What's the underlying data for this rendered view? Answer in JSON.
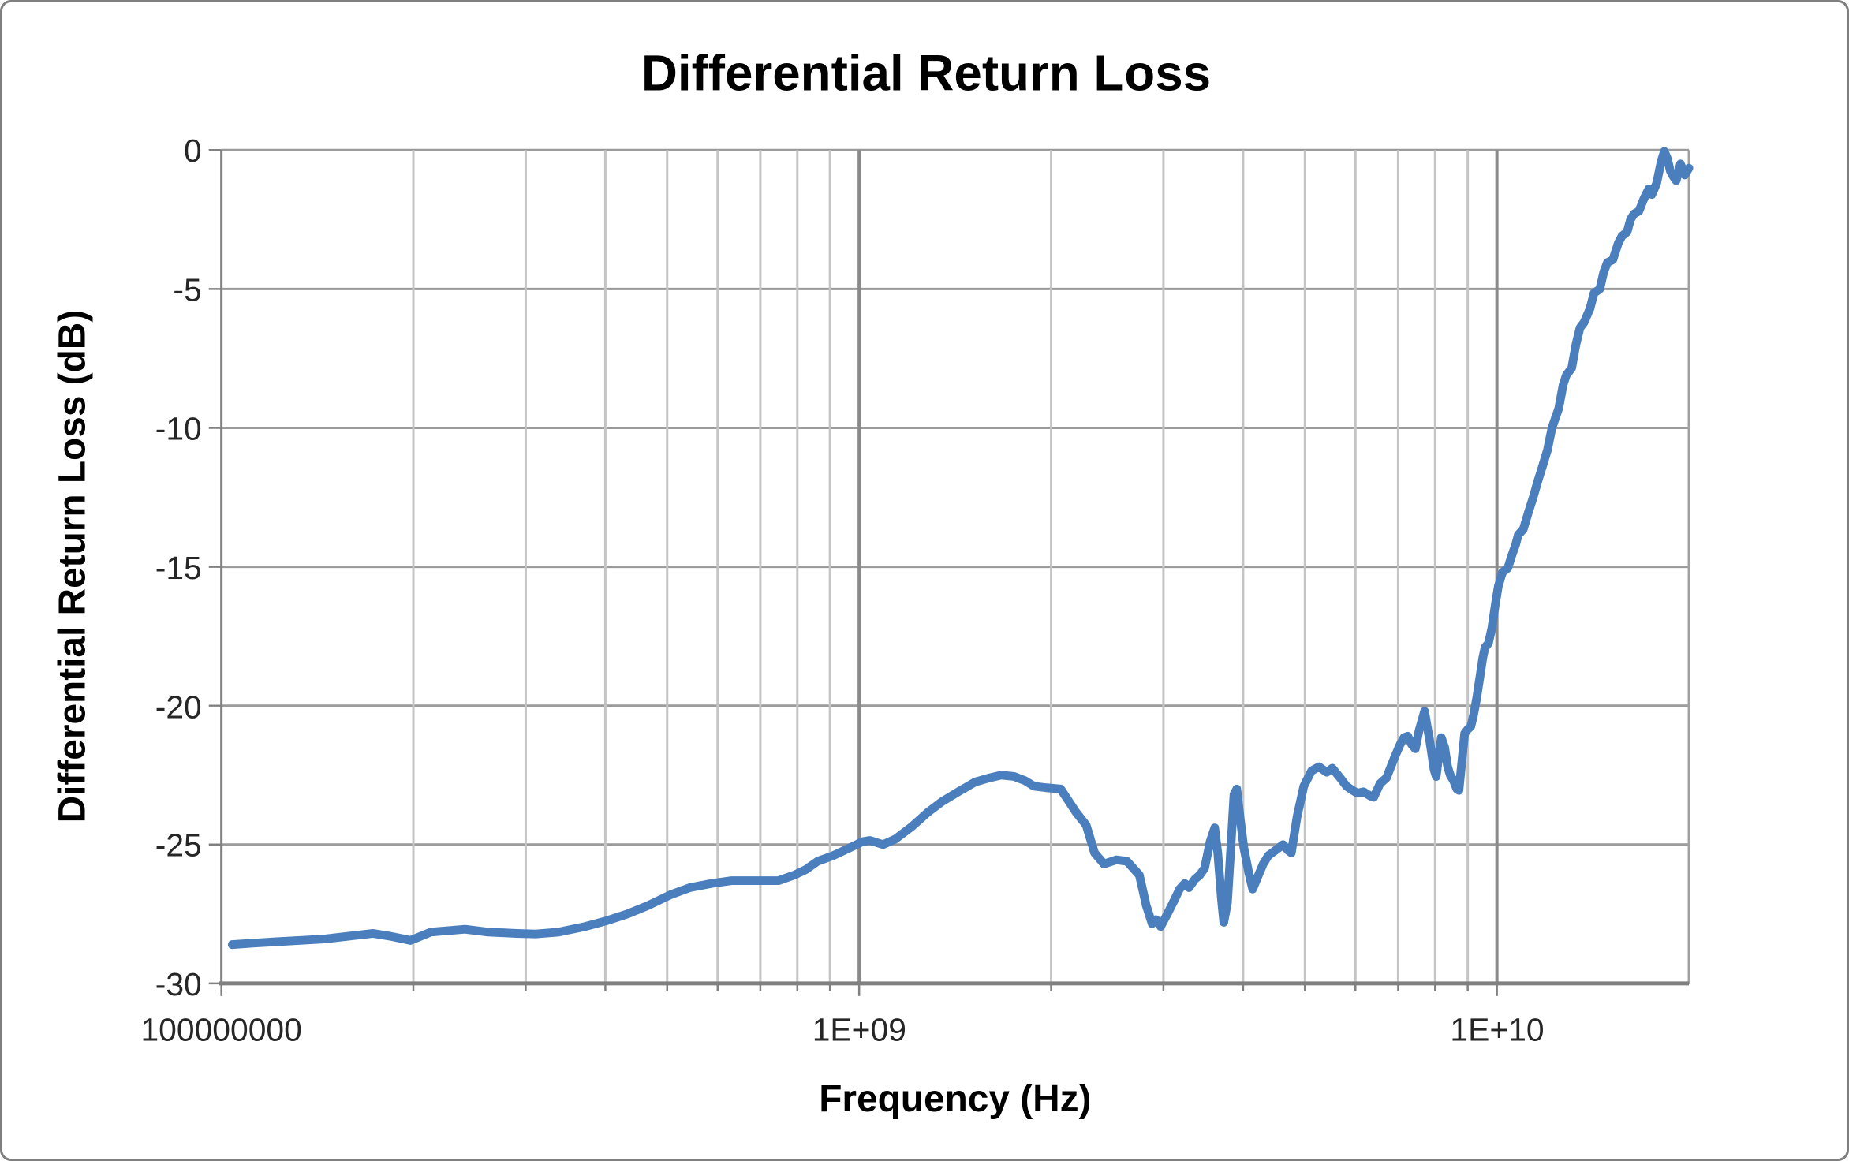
{
  "window": {
    "background": "#FFFFFF",
    "frame_border_color": "#7F7F7F"
  },
  "chart": {
    "title": "Differential Return Loss",
    "series_color": "#4A7EBD",
    "horizontal_gridline_color": "#9B9B9B",
    "minor_vertical_gridline_color": "#C4C4C4",
    "major_vertical_gridline_color": "#8A8A8A",
    "axis_line_color": "#808080",
    "y_axis": {
      "label": "Differential Return Loss (dB)",
      "tick_labels": [
        "0",
        "-5",
        "-10",
        "-15",
        "-20",
        "-25",
        "-30"
      ]
    },
    "x_axis": {
      "label": "Frequency (Hz)",
      "tick_labels": [
        "100000000",
        "1E+09",
        "1E+10"
      ]
    }
  },
  "chart_data": {
    "type": "line",
    "title": "Differential Return Loss",
    "xlabel": "Frequency (Hz)",
    "ylabel": "Differential Return Loss (dB)",
    "x_scale": "log",
    "xlim": [
      100000000.0,
      20000000000.0
    ],
    "ylim": [
      -30,
      0
    ],
    "y_major_step": 5,
    "grid": true,
    "legend": false,
    "x_labeled_ticks": [
      100000000.0,
      1000000000.0,
      10000000000.0
    ],
    "x_major_gridlines": [
      1000000000.0,
      10000000000.0,
      20000000000.0
    ],
    "series": [
      {
        "name": "Differential Return Loss",
        "color": "#4A7EBD",
        "points": [
          [
            104000000.0,
            -28.6
          ],
          [
            112000000.0,
            -28.55
          ],
          [
            122000000.0,
            -28.5
          ],
          [
            133000000.0,
            -28.45
          ],
          [
            145000000.0,
            -28.4
          ],
          [
            158000000.0,
            -28.3
          ],
          [
            173000000.0,
            -28.2
          ],
          [
            184000000.0,
            -28.3
          ],
          [
            198000000.0,
            -28.45
          ],
          [
            213000000.0,
            -28.15
          ],
          [
            241000000.0,
            -28.05
          ],
          [
            262000000.0,
            -28.15
          ],
          [
            290000000.0,
            -28.2
          ],
          [
            311000000.0,
            -28.22
          ],
          [
            338000000.0,
            -28.15
          ],
          [
            372000000.0,
            -27.95
          ],
          [
            401000000.0,
            -27.75
          ],
          [
            433000000.0,
            -27.5
          ],
          [
            466000000.0,
            -27.2
          ],
          [
            507000000.0,
            -26.8
          ],
          [
            543000000.0,
            -26.55
          ],
          [
            587000000.0,
            -26.4
          ],
          [
            631000000.0,
            -26.3
          ],
          [
            687000000.0,
            -26.3
          ],
          [
            747000000.0,
            -26.3
          ],
          [
            791000000.0,
            -26.1
          ],
          [
            825000000.0,
            -25.9
          ],
          [
            861000000.0,
            -25.6
          ],
          [
            910000000.0,
            -25.4
          ],
          [
            950000000.0,
            -25.2
          ],
          [
            991000000.0,
            -25.0
          ],
          [
            1010000000.0,
            -24.9
          ],
          [
            1040000000.0,
            -24.85
          ],
          [
            1090000000.0,
            -25.0
          ],
          [
            1140000000.0,
            -24.8
          ],
          [
            1210000000.0,
            -24.35
          ],
          [
            1280000000.0,
            -23.85
          ],
          [
            1350000000.0,
            -23.45
          ],
          [
            1430000000.0,
            -23.1
          ],
          [
            1520000000.0,
            -22.75
          ],
          [
            1600000000.0,
            -22.6
          ],
          [
            1670000000.0,
            -22.5
          ],
          [
            1750000000.0,
            -22.55
          ],
          [
            1820000000.0,
            -22.7
          ],
          [
            1880000000.0,
            -22.9
          ],
          [
            1960000000.0,
            -22.95
          ],
          [
            2070000000.0,
            -23.0
          ],
          [
            2190000000.0,
            -23.85
          ],
          [
            2270000000.0,
            -24.3
          ],
          [
            2340000000.0,
            -25.3
          ],
          [
            2420000000.0,
            -25.7
          ],
          [
            2530000000.0,
            -25.55
          ],
          [
            2630000000.0,
            -25.6
          ],
          [
            2750000000.0,
            -26.1
          ],
          [
            2820000000.0,
            -27.2
          ],
          [
            2880000000.0,
            -27.85
          ],
          [
            2920000000.0,
            -27.7
          ],
          [
            2970000000.0,
            -27.95
          ],
          [
            3050000000.0,
            -27.45
          ],
          [
            3120000000.0,
            -27.0
          ],
          [
            3180000000.0,
            -26.6
          ],
          [
            3240000000.0,
            -26.4
          ],
          [
            3290000000.0,
            -26.55
          ],
          [
            3360000000.0,
            -26.25
          ],
          [
            3420000000.0,
            -26.1
          ],
          [
            3480000000.0,
            -25.85
          ],
          [
            3550000000.0,
            -24.9
          ],
          [
            3610000000.0,
            -24.4
          ],
          [
            3650000000.0,
            -25.3
          ],
          [
            3700000000.0,
            -27.0
          ],
          [
            3730000000.0,
            -27.8
          ],
          [
            3780000000.0,
            -27.1
          ],
          [
            3820000000.0,
            -25.4
          ],
          [
            3870000000.0,
            -23.2
          ],
          [
            3910000000.0,
            -23.0
          ],
          [
            3960000000.0,
            -24.1
          ],
          [
            4010000000.0,
            -25.1
          ],
          [
            4080000000.0,
            -26.0
          ],
          [
            4140000000.0,
            -26.6
          ],
          [
            4220000000.0,
            -26.15
          ],
          [
            4300000000.0,
            -25.7
          ],
          [
            4380000000.0,
            -25.4
          ],
          [
            4470000000.0,
            -25.25
          ],
          [
            4560000000.0,
            -25.1
          ],
          [
            4620000000.0,
            -25.0
          ],
          [
            4700000000.0,
            -25.2
          ],
          [
            4760000000.0,
            -25.3
          ],
          [
            4860000000.0,
            -24.0
          ],
          [
            4980000000.0,
            -22.9
          ],
          [
            5120000000.0,
            -22.35
          ],
          [
            5260000000.0,
            -22.2
          ],
          [
            5410000000.0,
            -22.4
          ],
          [
            5520000000.0,
            -22.25
          ],
          [
            5680000000.0,
            -22.6
          ],
          [
            5810000000.0,
            -22.9
          ],
          [
            5940000000.0,
            -23.05
          ],
          [
            6040000000.0,
            -23.15
          ],
          [
            6180000000.0,
            -23.1
          ],
          [
            6330000000.0,
            -23.25
          ],
          [
            6410000000.0,
            -23.3
          ],
          [
            6560000000.0,
            -22.8
          ],
          [
            6710000000.0,
            -22.6
          ],
          [
            6900000000.0,
            -21.9
          ],
          [
            7050000000.0,
            -21.4
          ],
          [
            7150000000.0,
            -21.15
          ],
          [
            7250000000.0,
            -21.1
          ],
          [
            7350000000.0,
            -21.4
          ],
          [
            7450000000.0,
            -21.55
          ],
          [
            7550000000.0,
            -20.9
          ],
          [
            7700000000.0,
            -20.2
          ],
          [
            7850000000.0,
            -21.3
          ],
          [
            7970000000.0,
            -22.3
          ],
          [
            8030000000.0,
            -22.55
          ],
          [
            8100000000.0,
            -21.9
          ],
          [
            8180000000.0,
            -21.15
          ],
          [
            8280000000.0,
            -21.5
          ],
          [
            8370000000.0,
            -22.2
          ],
          [
            8450000000.0,
            -22.5
          ],
          [
            8550000000.0,
            -22.7
          ],
          [
            8650000000.0,
            -23.0
          ],
          [
            8720000000.0,
            -23.05
          ],
          [
            8820000000.0,
            -21.9
          ],
          [
            8900000000.0,
            -21.0
          ],
          [
            9000000000.0,
            -20.85
          ],
          [
            9100000000.0,
            -20.75
          ],
          [
            9200000000.0,
            -20.3
          ],
          [
            9300000000.0,
            -19.7
          ],
          [
            9400000000.0,
            -19.0
          ],
          [
            9500000000.0,
            -18.3
          ],
          [
            9580000000.0,
            -17.9
          ],
          [
            9700000000.0,
            -17.75
          ],
          [
            9820000000.0,
            -17.2
          ],
          [
            9950000000.0,
            -16.3
          ],
          [
            10050000000.0,
            -15.7
          ],
          [
            10200000000.0,
            -15.2
          ],
          [
            10400000000.0,
            -15.05
          ],
          [
            10550000000.0,
            -14.6
          ],
          [
            10700000000.0,
            -14.2
          ],
          [
            10800000000.0,
            -13.85
          ],
          [
            11000000000.0,
            -13.65
          ],
          [
            11200000000.0,
            -13.05
          ],
          [
            11400000000.0,
            -12.5
          ],
          [
            11600000000.0,
            -11.9
          ],
          [
            11800000000.0,
            -11.35
          ],
          [
            12000000000.0,
            -10.8
          ],
          [
            12200000000.0,
            -10.0
          ],
          [
            12500000000.0,
            -9.3
          ],
          [
            12700000000.0,
            -8.45
          ],
          [
            12850000000.0,
            -8.1
          ],
          [
            13100000000.0,
            -7.85
          ],
          [
            13300000000.0,
            -7.0
          ],
          [
            13500000000.0,
            -6.4
          ],
          [
            13700000000.0,
            -6.2
          ],
          [
            14000000000.0,
            -5.7
          ],
          [
            14200000000.0,
            -5.15
          ],
          [
            14500000000.0,
            -5.0
          ],
          [
            14700000000.0,
            -4.4
          ],
          [
            14900000000.0,
            -4.05
          ],
          [
            15200000000.0,
            -3.95
          ],
          [
            15500000000.0,
            -3.35
          ],
          [
            15700000000.0,
            -3.1
          ],
          [
            16000000000.0,
            -2.95
          ],
          [
            16200000000.0,
            -2.5
          ],
          [
            16400000000.0,
            -2.3
          ],
          [
            16700000000.0,
            -2.2
          ],
          [
            17000000000.0,
            -1.75
          ],
          [
            17300000000.0,
            -1.4
          ],
          [
            17500000000.0,
            -1.6
          ],
          [
            17800000000.0,
            -1.2
          ],
          [
            18100000000.0,
            -0.4
          ],
          [
            18300000000.0,
            -0.05
          ],
          [
            18500000000.0,
            -0.3
          ],
          [
            18700000000.0,
            -0.75
          ],
          [
            18900000000.0,
            -0.95
          ],
          [
            19100000000.0,
            -1.1
          ],
          [
            19400000000.0,
            -0.5
          ],
          [
            19700000000.0,
            -0.9
          ],
          [
            20000000000.0,
            -0.65
          ]
        ]
      }
    ]
  }
}
